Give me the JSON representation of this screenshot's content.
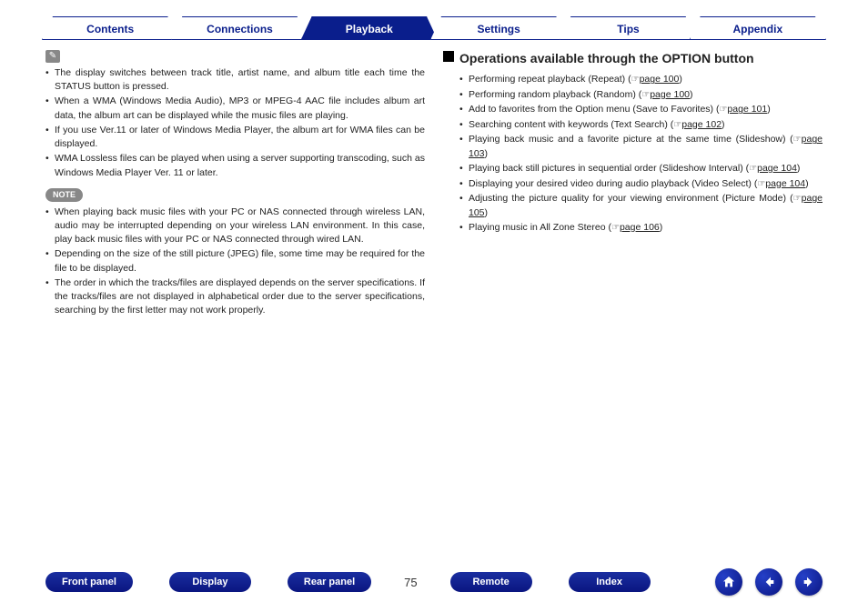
{
  "topTabs": [
    {
      "label": "Contents",
      "active": false
    },
    {
      "label": "Connections",
      "active": false
    },
    {
      "label": "Playback",
      "active": true
    },
    {
      "label": "Settings",
      "active": false
    },
    {
      "label": "Tips",
      "active": false
    },
    {
      "label": "Appendix",
      "active": false
    }
  ],
  "leftCol": {
    "editIcon": "✎",
    "infoBullets": [
      "The display switches between track title, artist name, and album title each time the STATUS button is pressed.",
      "When a WMA (Windows Media Audio), MP3 or MPEG-4 AAC file includes album art data, the album art can be displayed while the music files are playing.",
      "If you use Ver.11 or later of Windows Media Player, the album art for WMA files can be displayed.",
      "WMA Lossless files can be played when using a server supporting transcoding, such as Windows Media Player Ver. 11 or later."
    ],
    "noteLabel": "NOTE",
    "noteBullets": [
      "When playing back music files with your PC or NAS connected through wireless LAN, audio may be interrupted depending on your wireless LAN environment. In this case, play back music files with your PC or NAS connected through wired LAN.",
      "Depending on the size of the still picture (JPEG) file, some time may be required for the file to be displayed.",
      "The order in which the tracks/files are displayed depends on the server specifications. If the tracks/files are not displayed in alphabetical order due to the server specifications, searching by the first letter may not work properly."
    ]
  },
  "rightCol": {
    "header": "Operations available through the OPTION button",
    "items": [
      {
        "text": "Performing repeat playback (Repeat) (",
        "page": "page 100",
        "suffix": ")"
      },
      {
        "text": "Performing random playback (Random) (",
        "page": "page 100",
        "suffix": ")"
      },
      {
        "text": "Add to favorites from the Option menu (Save to Favorites) (",
        "page": "page 101",
        "suffix": ")"
      },
      {
        "text": "Searching content with keywords (Text Search) (",
        "page": "page 102",
        "suffix": ")"
      },
      {
        "text": "Playing back music and a favorite picture at the same time (Slideshow) (",
        "page": "page 103",
        "suffix": ")"
      },
      {
        "text": "Playing back still pictures in sequential order (Slideshow Interval) (",
        "page": "page 104",
        "suffix": ")"
      },
      {
        "text": "Displaying your desired video during audio playback (Video Select) (",
        "page": "page 104",
        "suffix": ")"
      },
      {
        "text": "Adjusting the picture quality for your viewing environment (Picture Mode)  (",
        "page": "page 105",
        "suffix": ")"
      },
      {
        "text": "Playing music in All Zone Stereo (",
        "page": "page 106",
        "suffix": ")"
      }
    ]
  },
  "bottomNav": {
    "pills": [
      "Front panel",
      "Display",
      "Rear panel"
    ],
    "pageNumber": "75",
    "pills2": [
      "Remote",
      "Index"
    ]
  },
  "colors": {
    "brand": "#0a1e8c",
    "pillGradTop": "#1a2ea0",
    "pillGradBot": "#0a1580",
    "noteBg": "#888888"
  }
}
